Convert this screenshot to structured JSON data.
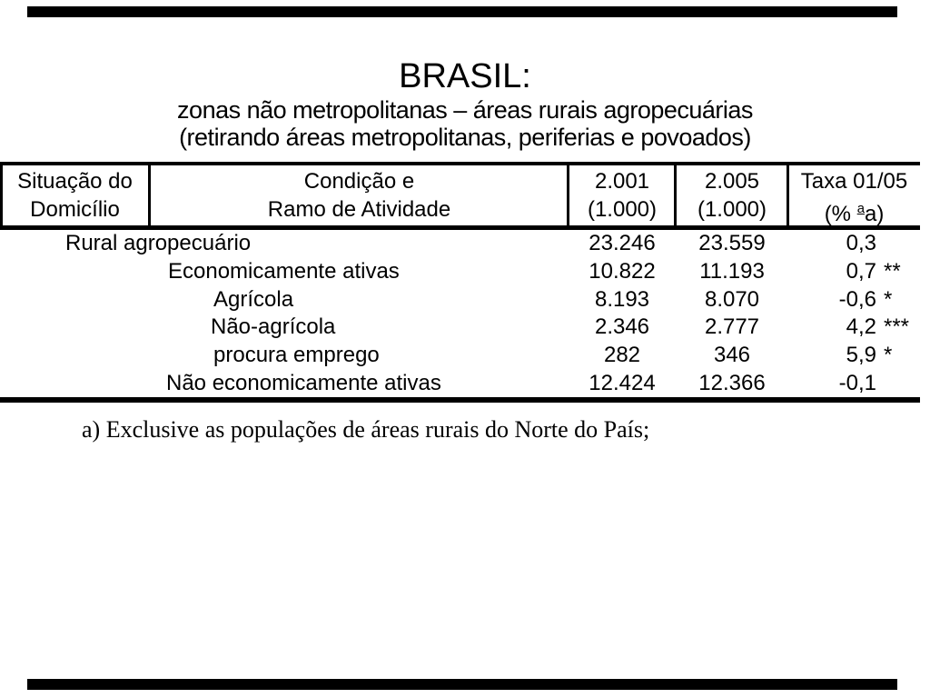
{
  "title": "BRASIL:",
  "subtitle_line1": "zonas não metropolitanas – áreas rurais agropecuárias",
  "subtitle_line2": "(retirando áreas metropolitanas, periferias e povoados)",
  "footnote": "a) Exclusive as populações de áreas rurais do Norte do País;",
  "colors": {
    "text": "#000000",
    "background": "#ffffff",
    "rule": "#000000"
  },
  "table": {
    "headers": {
      "situacao_line1": "Situação do",
      "situacao_line2": "Domicílio",
      "condicao_line1": "Condição e",
      "condicao_line2": "Ramo de Atividade",
      "y2001_line1": "2.001",
      "y2001_line2": "(1.000)",
      "y2005_line1": "2.005",
      "y2005_line2": "(1.000)",
      "taxa_line1": "Taxa 01/05",
      "taxa_line2_prefix": "(% ",
      "taxa_line2_sup": "a",
      "taxa_line2_suffix": "a)"
    },
    "rows": [
      {
        "label": "Rural agropecuário",
        "v2001": "23.246",
        "v2005": "23.559",
        "rate": "0,3",
        "sig": ""
      },
      {
        "label": "Economicamente ativas",
        "v2001": "10.822",
        "v2005": "11.193",
        "rate": "0,7",
        "sig": "**"
      },
      {
        "label": "Agrícola",
        "v2001": "8.193",
        "v2005": "8.070",
        "rate": "-0,6",
        "sig": "*"
      },
      {
        "label": "Não-agrícola",
        "v2001": "2.346",
        "v2005": "2.777",
        "rate": "4,2",
        "sig": "***"
      },
      {
        "label": "procura emprego",
        "v2001": "282",
        "v2005": "346",
        "rate": "5,9",
        "sig": "*"
      },
      {
        "label": "Não economicamente ativas",
        "v2001": "12.424",
        "v2005": "12.366",
        "rate": "-0,1",
        "sig": ""
      }
    ]
  }
}
